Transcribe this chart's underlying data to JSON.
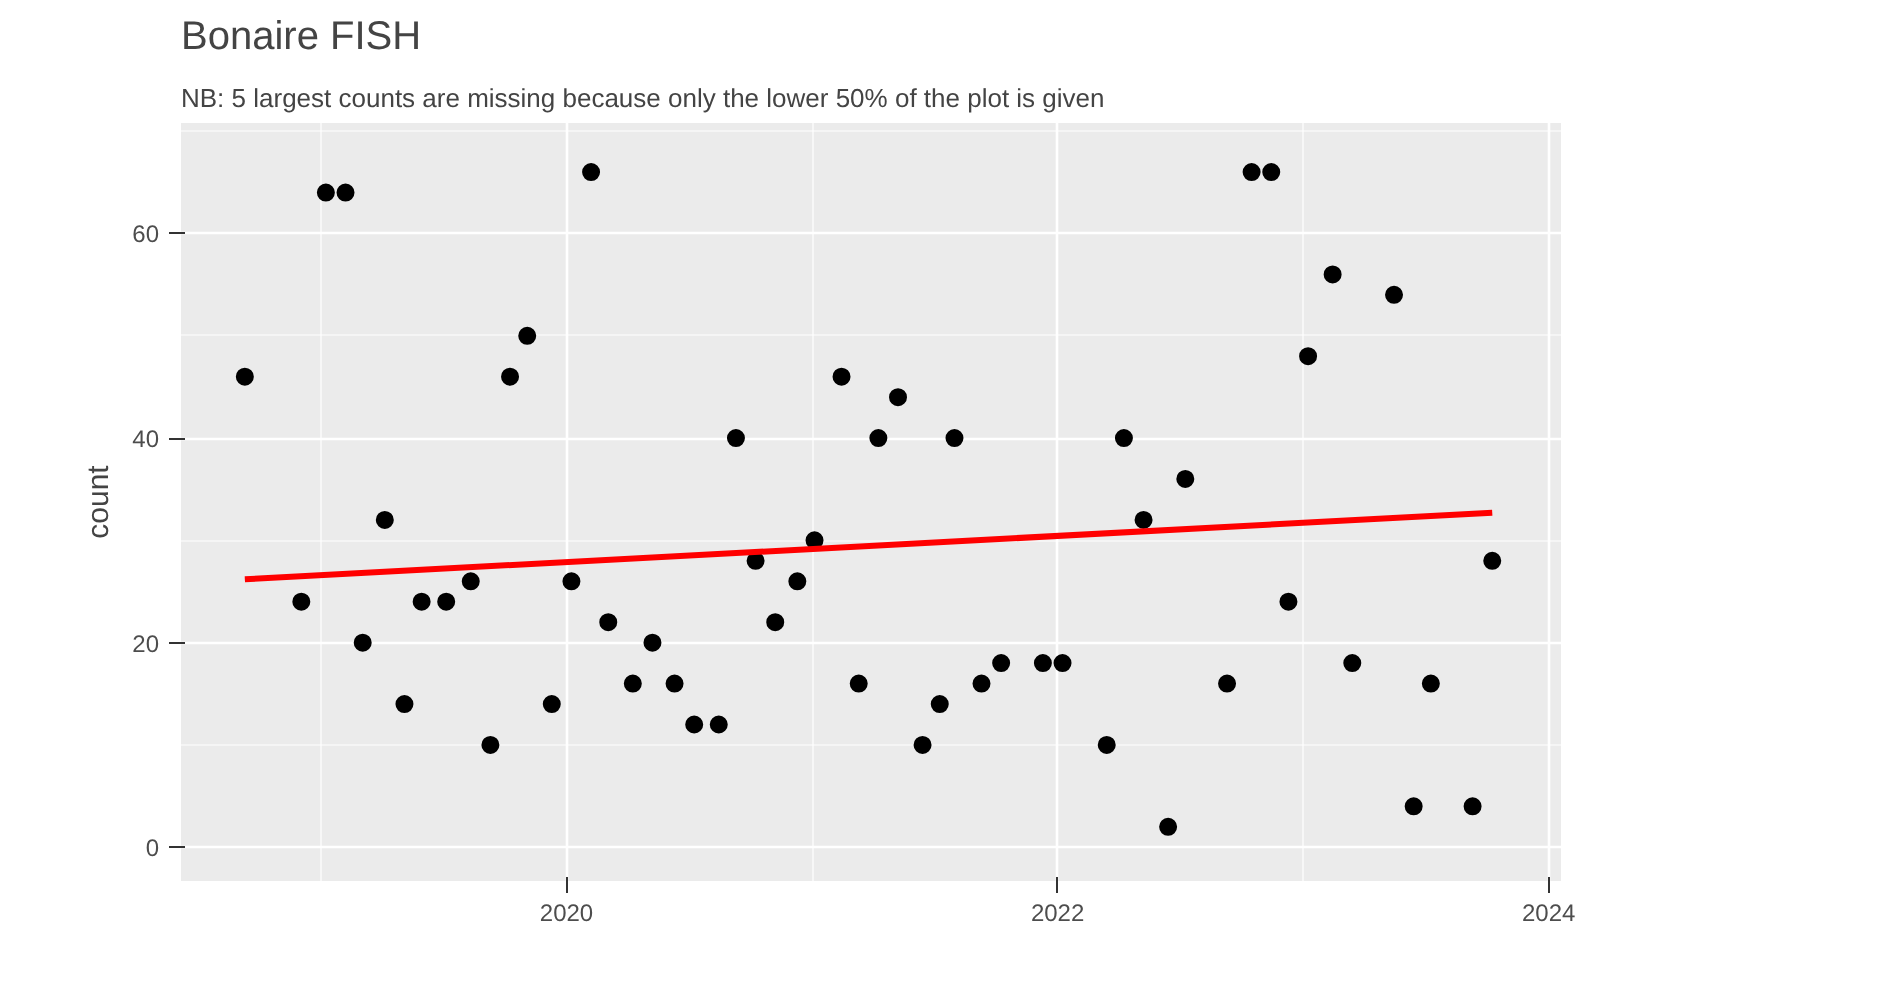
{
  "chart_data": {
    "type": "scatter",
    "title": "Bonaire  FISH",
    "subtitle": "NB: 5 largest counts are missing because only the lower 50% of the plot is given",
    "ylabel": "count",
    "xlim": [
      2018.43,
      2024.05
    ],
    "ylim": [
      -3.3,
      70.8
    ],
    "xticks": [
      2020,
      2022,
      2024
    ],
    "yticks": [
      0,
      20,
      40,
      60
    ],
    "grid": true,
    "series": [
      {
        "marker": "circle",
        "color": "#000000",
        "x": [
          2018.69,
          2018.92,
          2019.02,
          2019.1,
          2019.17,
          2019.26,
          2019.34,
          2019.41,
          2019.51,
          2019.61,
          2019.69,
          2019.77,
          2019.84,
          2019.94,
          2020.02,
          2020.1,
          2020.17,
          2020.27,
          2020.35,
          2020.44,
          2020.52,
          2020.62,
          2020.69,
          2020.77,
          2020.85,
          2020.94,
          2021.01,
          2021.12,
          2021.19,
          2021.27,
          2021.35,
          2021.45,
          2021.52,
          2021.58,
          2021.69,
          2021.77,
          2021.94,
          2022.02,
          2022.2,
          2022.27,
          2022.35,
          2022.45,
          2022.52,
          2022.69,
          2022.79,
          2022.87,
          2022.94,
          2023.02,
          2023.12,
          2023.2,
          2023.37,
          2023.45,
          2023.52,
          2023.69,
          2023.77
        ],
        "values": [
          46,
          24,
          64,
          64,
          20,
          32,
          14,
          24,
          24,
          26,
          10,
          46,
          50,
          14,
          26,
          66,
          22,
          16,
          20,
          16,
          12,
          12,
          40,
          28,
          22,
          26,
          30,
          46,
          16,
          40,
          44,
          10,
          14,
          40,
          16,
          18,
          18,
          18,
          10,
          40,
          32,
          2,
          36,
          16,
          66,
          66,
          24,
          48,
          56,
          18,
          54,
          4,
          16,
          4,
          28
        ]
      },
      {
        "type": "line",
        "color": "#ff0000",
        "x": [
          2018.69,
          2023.77
        ],
        "values": [
          26.2,
          32.7
        ]
      }
    ]
  }
}
